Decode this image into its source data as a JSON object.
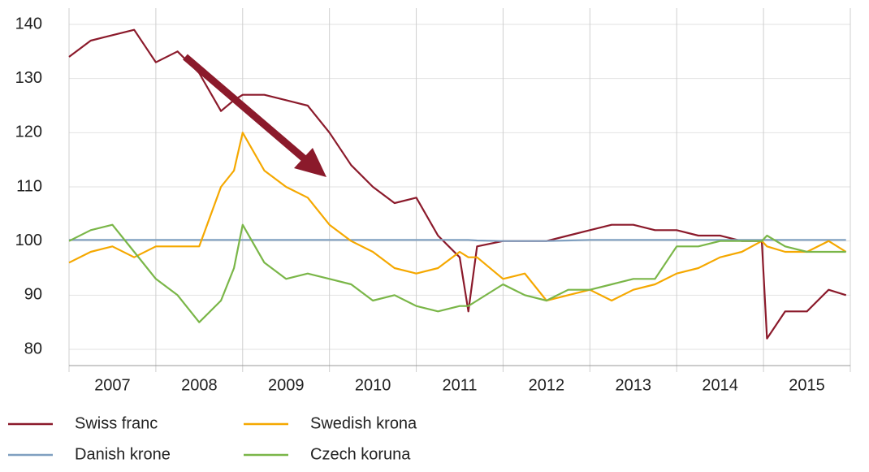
{
  "chart_data": {
    "type": "line",
    "x": [
      2007.0,
      2007.25,
      2007.5,
      2007.75,
      2008.0,
      2008.25,
      2008.5,
      2008.75,
      2008.9,
      2009.0,
      2009.25,
      2009.5,
      2009.75,
      2010.0,
      2010.25,
      2010.5,
      2010.75,
      2011.0,
      2011.25,
      2011.5,
      2011.6,
      2011.7,
      2012.0,
      2012.25,
      2012.5,
      2012.75,
      2013.0,
      2013.25,
      2013.5,
      2013.75,
      2014.0,
      2014.25,
      2014.5,
      2014.75,
      2014.98,
      2015.04,
      2015.25,
      2015.5,
      2015.75,
      2015.95
    ],
    "series": [
      {
        "name": "Swiss franc",
        "color": "#8b1a2b",
        "values": [
          134,
          137,
          138,
          139,
          133,
          135,
          131,
          124,
          126,
          127,
          127,
          126,
          125,
          120,
          114,
          110,
          107,
          108,
          101,
          97,
          87,
          99,
          100,
          100,
          100,
          101,
          102,
          103,
          103,
          102,
          102,
          101,
          101,
          100,
          100,
          82,
          87,
          87,
          91,
          90
        ]
      },
      {
        "name": "Danish krone",
        "color": "#7f9fc0",
        "values": [
          100.2,
          100.2,
          100.2,
          100.2,
          100.2,
          100.2,
          100.2,
          100.2,
          100.2,
          100.2,
          100.2,
          100.2,
          100.2,
          100.2,
          100.2,
          100.2,
          100.2,
          100.2,
          100.2,
          100.2,
          100.2,
          100.1,
          100.0,
          100.0,
          100.0,
          100.1,
          100.2,
          100.2,
          100.2,
          100.2,
          100.2,
          100.2,
          100.2,
          100.2,
          100.2,
          100.2,
          100.2,
          100.2,
          100.2,
          100.2
        ]
      },
      {
        "name": "Swedish krona",
        "color": "#f5a800",
        "values": [
          96,
          98,
          99,
          97,
          99,
          99,
          99,
          110,
          113,
          120,
          113,
          110,
          108,
          103,
          100,
          98,
          95,
          94,
          95,
          98,
          97,
          97,
          93,
          94,
          89,
          90,
          91,
          89,
          91,
          92,
          94,
          95,
          97,
          98,
          100,
          99,
          98,
          98,
          100,
          98
        ]
      },
      {
        "name": "Czech koruna",
        "color": "#7ab648",
        "values": [
          100,
          102,
          103,
          98,
          93,
          90,
          85,
          89,
          95,
          103,
          96,
          93,
          94,
          93,
          92,
          89,
          90,
          88,
          87,
          88,
          88,
          89,
          92,
          90,
          89,
          91,
          91,
          92,
          93,
          93,
          99,
          99,
          100,
          100,
          100,
          101,
          99,
          98,
          98,
          98
        ]
      }
    ],
    "xlim": [
      2007,
      2016
    ],
    "xticks": [
      {
        "value": 2007.5,
        "label": "2007"
      },
      {
        "value": 2008.5,
        "label": "2008"
      },
      {
        "value": 2009.5,
        "label": "2009"
      },
      {
        "value": 2010.5,
        "label": "2010"
      },
      {
        "value": 2011.5,
        "label": "2011"
      },
      {
        "value": 2012.5,
        "label": "2012"
      },
      {
        "value": 2013.5,
        "label": "2013"
      },
      {
        "value": 2014.5,
        "label": "2014"
      },
      {
        "value": 2015.5,
        "label": "2015"
      }
    ],
    "xgrid": [
      2007,
      2008,
      2009,
      2010,
      2011,
      2012,
      2013,
      2014,
      2015,
      2016
    ],
    "ylim": [
      77,
      143
    ],
    "yticks": [
      80,
      90,
      100,
      110,
      120,
      130,
      140
    ],
    "grid": true
  }
}
